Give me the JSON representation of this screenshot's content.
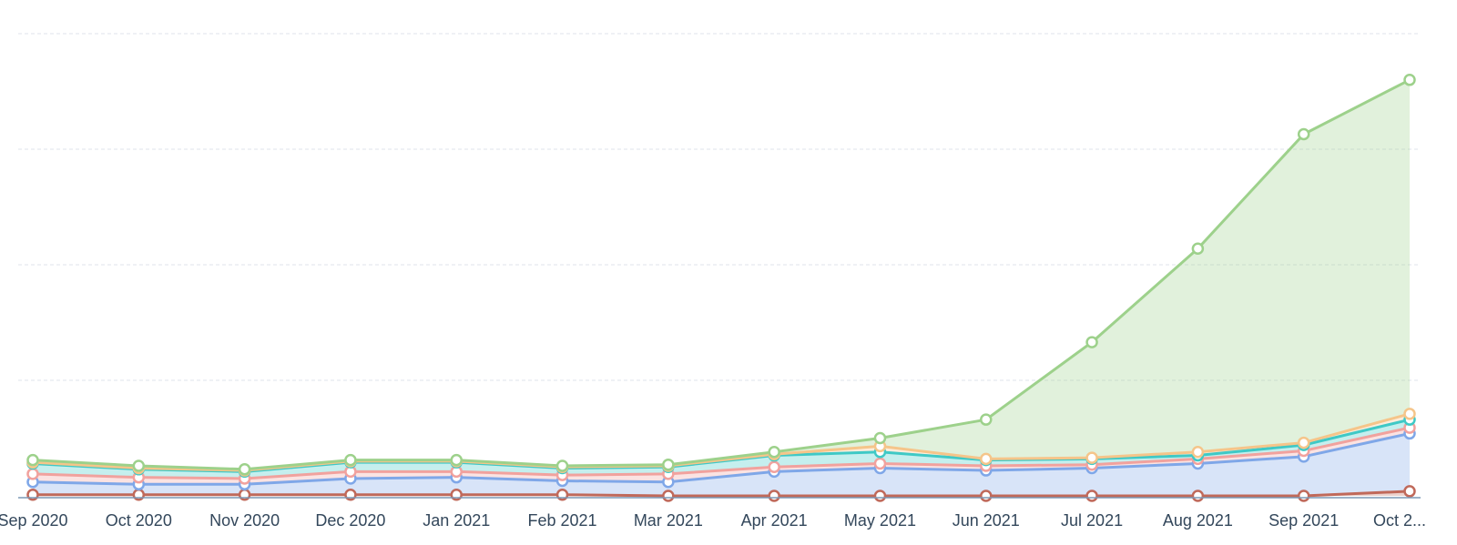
{
  "chart_data": {
    "type": "area",
    "stacked": true,
    "categories": [
      "Sep 2020",
      "Oct 2020",
      "Nov 2020",
      "Dec 2020",
      "Jan 2021",
      "Feb 2021",
      "Mar 2021",
      "Apr 2021",
      "May 2021",
      "Jun 2021",
      "Jul 2021",
      "Aug 2021",
      "Sep 2021",
      "Oct 2..."
    ],
    "ylim": [
      0,
      400
    ],
    "grid": true,
    "legend": "none",
    "series": [
      {
        "color": "#c0695a",
        "values": [
          1,
          1,
          1,
          1,
          1,
          1,
          0,
          0,
          0,
          0,
          0,
          0,
          0,
          4
        ]
      },
      {
        "color": "#7fa7e8",
        "values": [
          11,
          9,
          9,
          14,
          15,
          12,
          12,
          21,
          24,
          22,
          24,
          28,
          34,
          50
        ]
      },
      {
        "color": "#f1a29e",
        "values": [
          7,
          6,
          5,
          6,
          5,
          5,
          7,
          4,
          4,
          4,
          3,
          4,
          5,
          5
        ]
      },
      {
        "color": "#3fc9c6",
        "values": [
          9,
          7,
          6,
          8,
          8,
          6,
          6,
          10,
          10,
          5,
          5,
          3,
          5,
          7
        ]
      },
      {
        "color": "#f5c58a",
        "values": [
          1,
          1,
          1,
          1,
          1,
          1,
          1,
          1,
          5,
          1,
          1,
          3,
          2,
          5
        ]
      },
      {
        "color": "#9dd18b",
        "values": [
          2,
          2,
          1,
          1,
          1,
          1,
          1,
          2,
          7,
          34,
          100,
          176,
          267,
          289
        ]
      }
    ]
  }
}
